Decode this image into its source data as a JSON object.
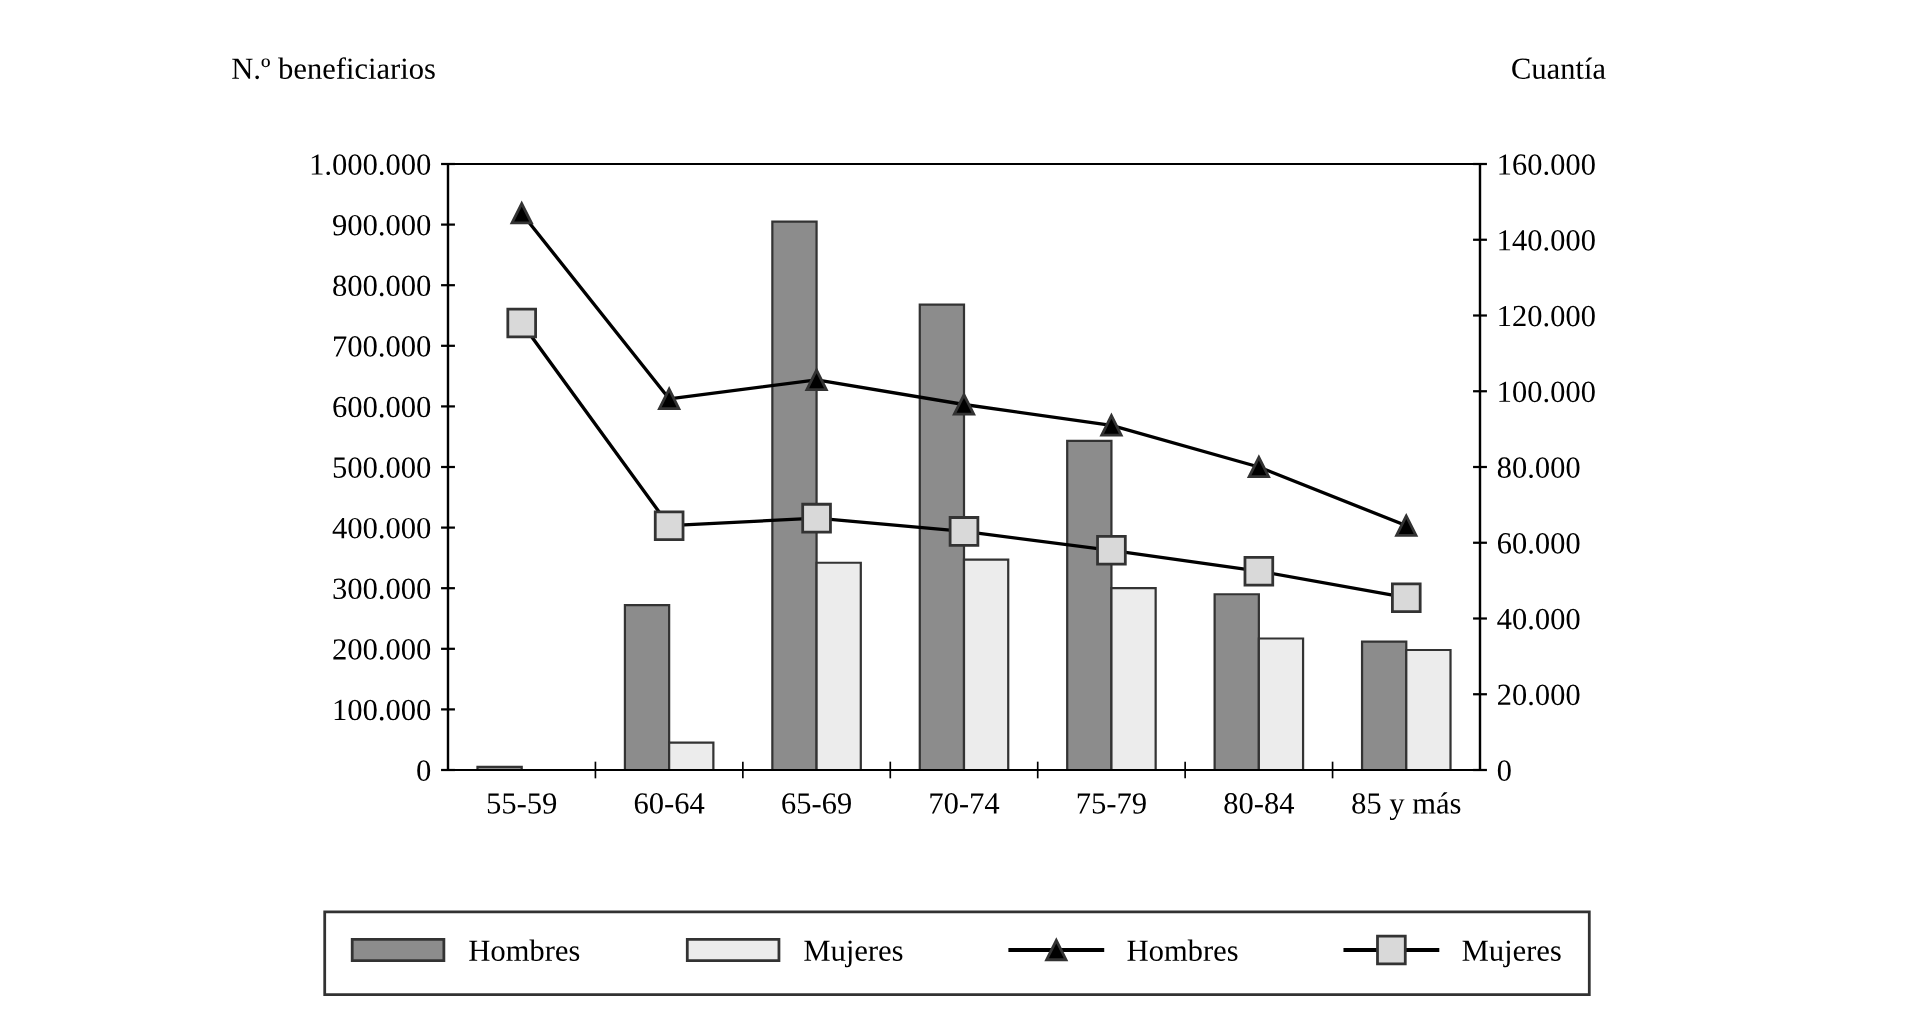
{
  "chart_data": {
    "type": "bar",
    "ylabel": "N.º beneficiarios",
    "y2label": "Cuantía",
    "categories": [
      "55-59",
      "60-64",
      "65-69",
      "70-74",
      "75-79",
      "80-84",
      "85 y más"
    ],
    "series": [
      {
        "name": "Hombres",
        "color": "#8c8c8c",
        "values": [
          5000,
          272000,
          905000,
          768000,
          543000,
          290000,
          212000
        ]
      },
      {
        "name": "Mujeres",
        "color": "#ececec",
        "values": [
          null,
          45000,
          342000,
          347000,
          300000,
          217000,
          198000
        ]
      },
      {
        "name": "Hombres",
        "type": "line",
        "axis": "y2",
        "color": "#000000",
        "marker": "triangle",
        "values": [
          147000,
          98000,
          103000,
          96500,
          91000,
          80000,
          64500
        ]
      },
      {
        "name": "Mujeres",
        "type": "line",
        "axis": "y2",
        "color": "#000000",
        "marker": "square",
        "values": [
          118000,
          64500,
          66500,
          63000,
          58000,
          52500,
          45500
        ]
      }
    ],
    "ylim": [
      0,
      1000000
    ],
    "yticks": [
      {
        "value": 0,
        "label": "0"
      },
      {
        "value": 100000,
        "label": "100.000"
      },
      {
        "value": 200000,
        "label": "200.000"
      },
      {
        "value": 300000,
        "label": "300.000"
      },
      {
        "value": 400000,
        "label": "400.000"
      },
      {
        "value": 500000,
        "label": "500.000"
      },
      {
        "value": 600000,
        "label": "600.000"
      },
      {
        "value": 700000,
        "label": "700.000"
      },
      {
        "value": 800000,
        "label": "800.000"
      },
      {
        "value": 900000,
        "label": "900.000"
      },
      {
        "value": 1000000,
        "label": "1.000.000"
      }
    ],
    "y2lim": [
      0,
      160000
    ],
    "y2ticks": [
      {
        "value": 0,
        "label": "0"
      },
      {
        "value": 20000,
        "label": "20.000"
      },
      {
        "value": 40000,
        "label": "40.000"
      },
      {
        "value": 60000,
        "label": "60.000"
      },
      {
        "value": 80000,
        "label": "80.000"
      },
      {
        "value": 100000,
        "label": "100.000"
      },
      {
        "value": 120000,
        "label": "120.000"
      },
      {
        "value": 140000,
        "label": "140.000"
      },
      {
        "value": 160000,
        "label": "160.000"
      }
    ],
    "grid": false,
    "legend": "bottom"
  }
}
